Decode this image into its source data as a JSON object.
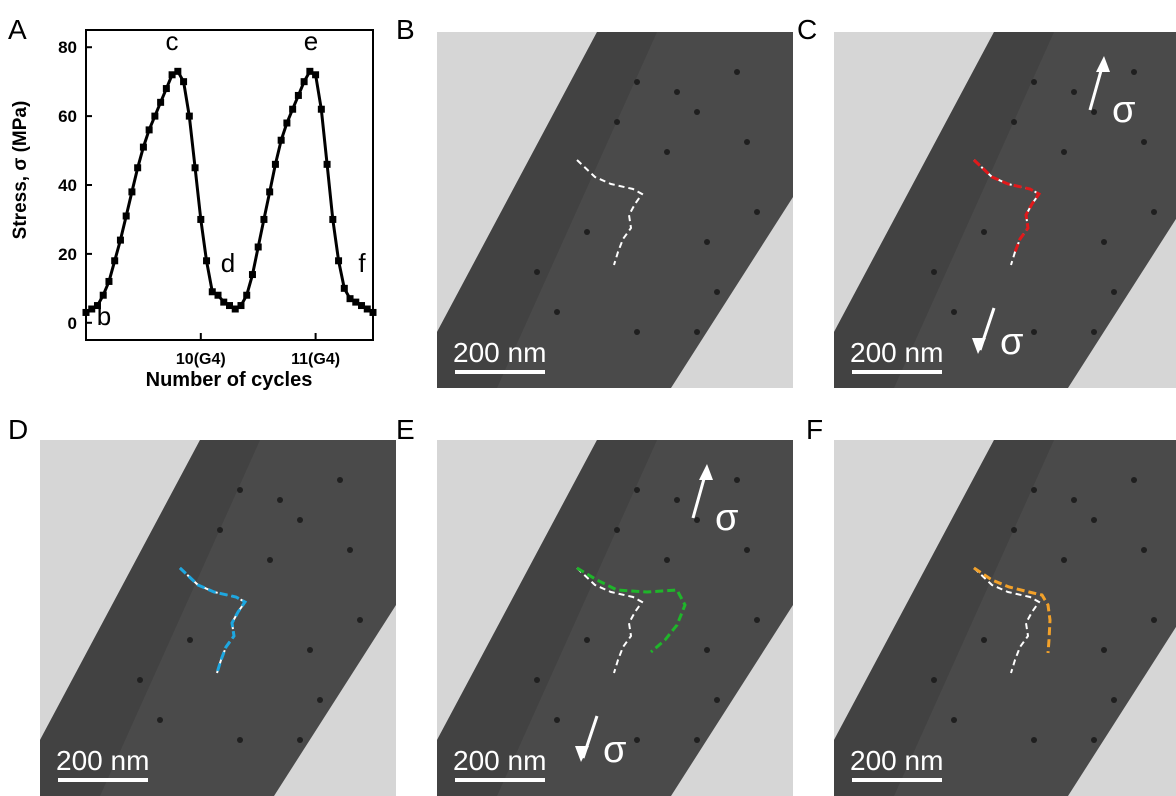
{
  "panels": {
    "A": {
      "letter": "A"
    },
    "B": {
      "letter": "B",
      "scale": "200 nm"
    },
    "C": {
      "letter": "C",
      "scale": "200 nm",
      "sigma": "σ"
    },
    "D": {
      "letter": "D",
      "scale": "200 nm"
    },
    "E": {
      "letter": "E",
      "scale": "200 nm",
      "sigma": "σ"
    },
    "F": {
      "letter": "F",
      "scale": "200 nm"
    }
  },
  "colors": {
    "background": "#d6d6d6",
    "band": "#4a4a4a",
    "C": "#e0191b",
    "D": "#1ea7e0",
    "E": "#1fb52a",
    "F": "#f2a12a",
    "trace": "#000000"
  },
  "chart_data": {
    "type": "line",
    "xlabel": "Number of cycles",
    "ylabel": "Stress, σ (MPa)",
    "x_tick_labels": [
      "10(G4)",
      "11(G4)"
    ],
    "y_ticks": [
      0,
      20,
      40,
      60,
      80
    ],
    "ylim": [
      -5,
      85
    ],
    "xlim": [
      9.0,
      11.5
    ],
    "annotations": [
      "b",
      "c",
      "d",
      "e",
      "f"
    ],
    "series": [
      {
        "x": [
          9.0,
          9.05,
          9.1,
          9.15,
          9.2,
          9.25,
          9.3,
          9.35,
          9.4,
          9.45,
          9.5,
          9.55,
          9.6,
          9.65,
          9.7,
          9.75,
          9.8,
          9.85,
          9.9,
          9.95,
          10.0,
          10.05,
          10.1,
          10.15,
          10.2,
          10.25,
          10.3,
          10.35,
          10.4,
          10.45,
          10.5,
          10.55,
          10.6,
          10.65,
          10.7,
          10.75,
          10.8,
          10.85,
          10.9,
          10.95,
          11.0,
          11.05,
          11.1,
          11.15,
          11.2,
          11.25,
          11.3,
          11.35,
          11.4,
          11.45,
          11.5
        ],
        "y": [
          3,
          4,
          5,
          8,
          12,
          18,
          24,
          31,
          38,
          45,
          51,
          56,
          60,
          64,
          68,
          72,
          73,
          70,
          60,
          45,
          30,
          18,
          9,
          8,
          6,
          5,
          4,
          5,
          8,
          14,
          22,
          30,
          38,
          46,
          53,
          58,
          62,
          66,
          70,
          73,
          72,
          62,
          46,
          30,
          18,
          10,
          7,
          6,
          5,
          4,
          3
        ]
      }
    ]
  }
}
